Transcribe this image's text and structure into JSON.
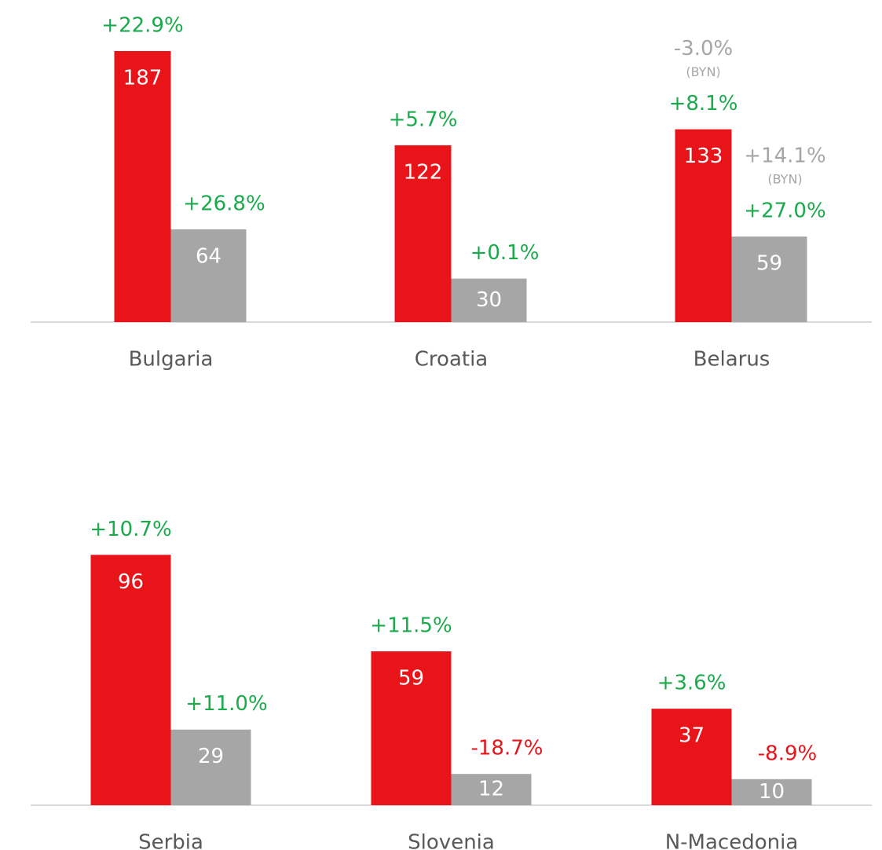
{
  "chart_data": [
    {
      "type": "bar",
      "categories": [
        "Bulgaria",
        "Croatia",
        "Belarus"
      ],
      "ylim": [
        0,
        200
      ],
      "label_colors": {
        "up": "#1aaa4b",
        "down": "#e8141a",
        "local": "#a6a6a6"
      },
      "series": [
        {
          "color": "#e8141a",
          "values": [
            187,
            122,
            133
          ],
          "change_labels": [
            "+22.9%",
            "+5.7%",
            "+8.1%"
          ],
          "local_change_labels": [
            null,
            null,
            "-3.0%"
          ],
          "local_notes": [
            null,
            null,
            "(BYN)"
          ]
        },
        {
          "color": "#a6a6a6",
          "values": [
            64,
            30,
            59
          ],
          "change_labels": [
            "+26.8%",
            "+0.1%",
            "+27.0%"
          ],
          "local_change_labels": [
            null,
            null,
            "+14.1%"
          ],
          "local_notes": [
            null,
            null,
            "(BYN)"
          ]
        }
      ]
    },
    {
      "type": "bar",
      "categories": [
        "Serbia",
        "Slovenia",
        "N-Macedonia"
      ],
      "ylim": [
        0,
        100
      ],
      "label_colors": {
        "up": "#1aaa4b",
        "down": "#e8141a",
        "local": "#a6a6a6"
      },
      "series": [
        {
          "color": "#e8141a",
          "values": [
            96,
            59,
            37
          ],
          "change_labels": [
            "+10.7%",
            "+11.5%",
            "+3.6%"
          ]
        },
        {
          "color": "#a6a6a6",
          "values": [
            29,
            12,
            10
          ],
          "change_labels": [
            "+11.0%",
            "-18.7%",
            "-8.9%"
          ]
        }
      ]
    }
  ]
}
